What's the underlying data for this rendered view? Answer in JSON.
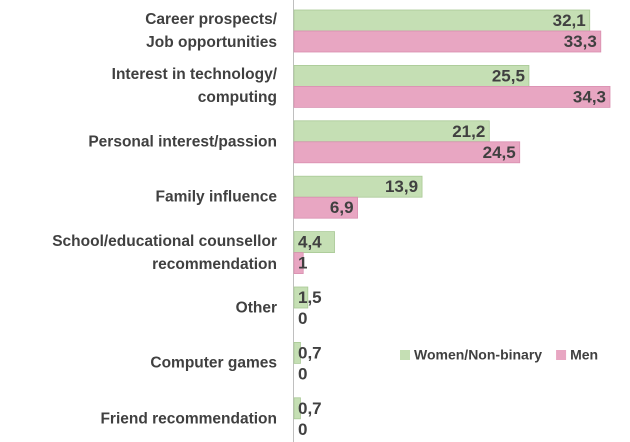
{
  "chart_data": {
    "type": "bar",
    "orientation": "horizontal",
    "categories": [
      "Career prospects/\nJob opportunities",
      "Interest in technology/\ncomputing",
      "Personal interest/passion",
      "Family influence",
      "School/educational counsellor\nrecommendation",
      "Other",
      "Computer games",
      "Friend recommendation"
    ],
    "series": [
      {
        "name": "Women/Non-binary",
        "color": "#c5dfb4",
        "values": [
          32.1,
          25.5,
          21.2,
          13.9,
          4.4,
          1.5,
          0.7,
          0.7
        ],
        "value_labels": [
          "32,1",
          "25,5",
          "21,2",
          "13,9",
          "4,4",
          "1,5",
          "0,7",
          "0,7"
        ]
      },
      {
        "name": "Men",
        "color": "#e8a6c2",
        "values": [
          33.3,
          34.3,
          24.5,
          6.9,
          1,
          0,
          0,
          0
        ],
        "value_labels": [
          "33,3",
          "34,3",
          "24,5",
          "6,9",
          "1",
          "0",
          "0",
          "0"
        ]
      }
    ],
    "legend": "right"
  }
}
